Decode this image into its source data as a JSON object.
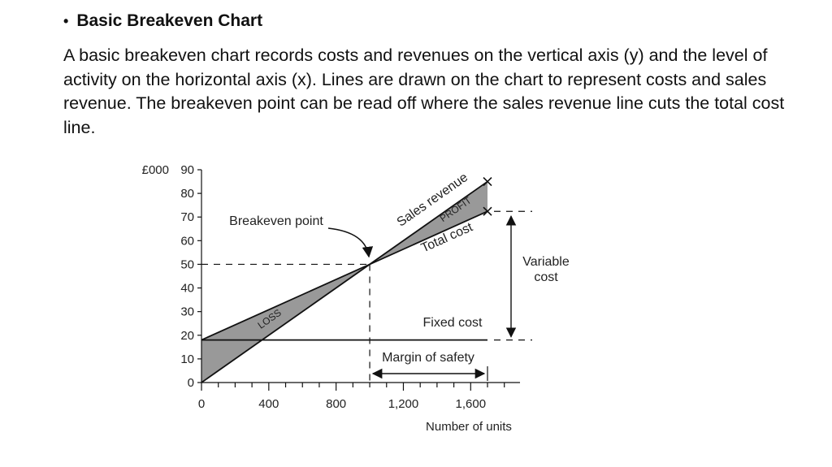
{
  "slide": {
    "bullet": "•",
    "heading": "Basic Breakeven Chart",
    "paragraph": "A basic breakeven chart records costs and revenues on the vertical axis (y) and the level of activity on the horizontal axis (x). Lines are drawn on the chart to represent costs and sales revenue. The breakeven point can be read off where the sales revenue line cuts the total cost line."
  },
  "chart_data": {
    "type": "line",
    "ylabel": "£000",
    "xlabel": "Number of units",
    "xlim": [
      0,
      1700
    ],
    "ylim": [
      0,
      90
    ],
    "x_ticks": [
      0,
      400,
      800,
      1200,
      1600
    ],
    "x_tick_labels": [
      "0",
      "400",
      "800",
      "1,200",
      "1,600"
    ],
    "y_ticks": [
      0,
      10,
      20,
      30,
      40,
      50,
      60,
      70,
      80,
      90
    ],
    "y_tick_labels": [
      "0",
      "10",
      "20",
      "30",
      "40",
      "50",
      "60",
      "70",
      "80",
      "90"
    ],
    "series": [
      {
        "name": "Sales revenue",
        "x": [
          0,
          1000,
          1700
        ],
        "y": [
          0,
          50,
          85
        ]
      },
      {
        "name": "Total cost",
        "x": [
          0,
          1000,
          1700
        ],
        "y": [
          18,
          50,
          72.4
        ]
      },
      {
        "name": "Fixed cost",
        "x": [
          0,
          1700
        ],
        "y": [
          18,
          18
        ]
      }
    ],
    "breakeven": {
      "units": 1000,
      "value": 50
    },
    "margin_of_safety": {
      "from": 1000,
      "to": 1700
    },
    "labels": {
      "breakeven_point": "Breakeven point",
      "profit": "PROFIT",
      "loss": "LOSS",
      "variable_cost": [
        "Variable",
        "cost"
      ],
      "margin_of_safety": "Margin of safety"
    },
    "colors": {
      "shade": "#999999",
      "line": "#111111"
    }
  }
}
